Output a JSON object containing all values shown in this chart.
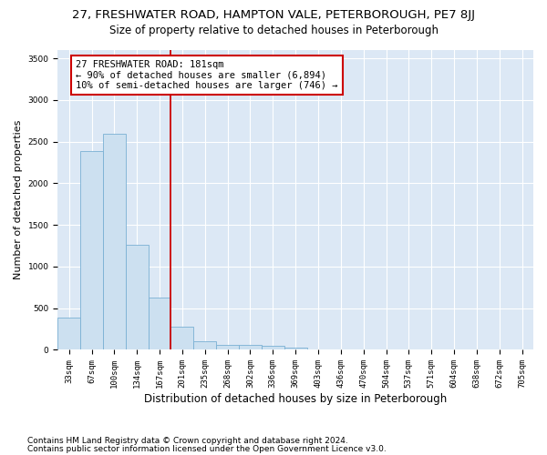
{
  "title_line1": "27, FRESHWATER ROAD, HAMPTON VALE, PETERBOROUGH, PE7 8JJ",
  "title_line2": "Size of property relative to detached houses in Peterborough",
  "xlabel": "Distribution of detached houses by size in Peterborough",
  "ylabel": "Number of detached properties",
  "footnote1": "Contains HM Land Registry data © Crown copyright and database right 2024.",
  "footnote2": "Contains public sector information licensed under the Open Government Licence v3.0.",
  "bar_labels": [
    "33sqm",
    "67sqm",
    "100sqm",
    "134sqm",
    "167sqm",
    "201sqm",
    "235sqm",
    "268sqm",
    "302sqm",
    "336sqm",
    "369sqm",
    "403sqm",
    "436sqm",
    "470sqm",
    "504sqm",
    "537sqm",
    "571sqm",
    "604sqm",
    "638sqm",
    "672sqm",
    "705sqm"
  ],
  "bar_values": [
    385,
    2390,
    2590,
    1260,
    630,
    280,
    105,
    60,
    55,
    45,
    30,
    0,
    0,
    0,
    0,
    0,
    0,
    0,
    0,
    0,
    0
  ],
  "bar_color": "#cce0f0",
  "bar_edge_color": "#7ab0d4",
  "vline_x": 4.5,
  "vline_color": "#cc0000",
  "annotation_text": "27 FRESHWATER ROAD: 181sqm\n← 90% of detached houses are smaller (6,894)\n10% of semi-detached houses are larger (746) →",
  "annotation_box_color": "#cc0000",
  "ylim": [
    0,
    3600
  ],
  "yticks": [
    0,
    500,
    1000,
    1500,
    2000,
    2500,
    3000,
    3500
  ],
  "background_color": "#dce8f5",
  "grid_color": "#ffffff",
  "title1_fontsize": 9.5,
  "title2_fontsize": 8.5,
  "ylabel_fontsize": 8,
  "xlabel_fontsize": 8.5,
  "tick_fontsize": 6.5,
  "annotation_fontsize": 7.5,
  "footnote_fontsize": 6.5
}
